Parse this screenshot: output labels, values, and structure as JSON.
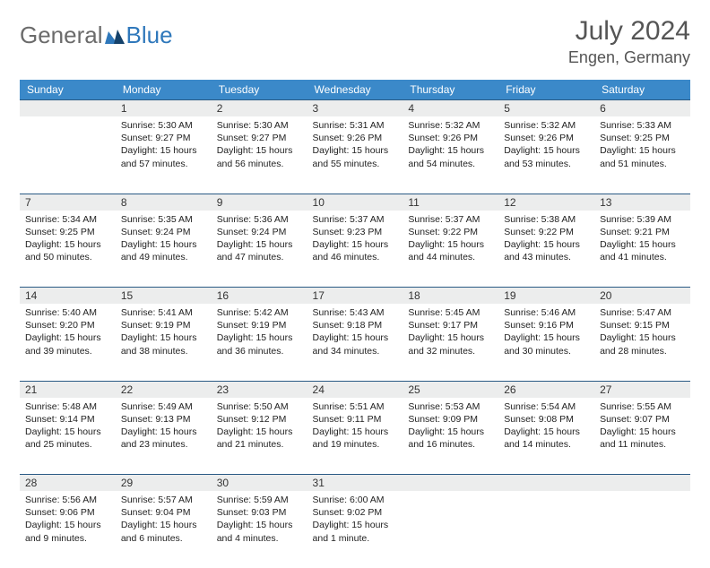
{
  "brand": {
    "part1": "General",
    "part2": "Blue"
  },
  "title": "July 2024",
  "location": "Engen, Germany",
  "header_bg": "#3b89c9",
  "rule_color": "#2a5a84",
  "weekdays": [
    "Sunday",
    "Monday",
    "Tuesday",
    "Wednesday",
    "Thursday",
    "Friday",
    "Saturday"
  ],
  "weeks": [
    {
      "nums": [
        "",
        "1",
        "2",
        "3",
        "4",
        "5",
        "6"
      ],
      "cells": [
        {
          "sunrise": "",
          "sunset": "",
          "daylight": ""
        },
        {
          "sunrise": "Sunrise: 5:30 AM",
          "sunset": "Sunset: 9:27 PM",
          "daylight": "Daylight: 15 hours and 57 minutes."
        },
        {
          "sunrise": "Sunrise: 5:30 AM",
          "sunset": "Sunset: 9:27 PM",
          "daylight": "Daylight: 15 hours and 56 minutes."
        },
        {
          "sunrise": "Sunrise: 5:31 AM",
          "sunset": "Sunset: 9:26 PM",
          "daylight": "Daylight: 15 hours and 55 minutes."
        },
        {
          "sunrise": "Sunrise: 5:32 AM",
          "sunset": "Sunset: 9:26 PM",
          "daylight": "Daylight: 15 hours and 54 minutes."
        },
        {
          "sunrise": "Sunrise: 5:32 AM",
          "sunset": "Sunset: 9:26 PM",
          "daylight": "Daylight: 15 hours and 53 minutes."
        },
        {
          "sunrise": "Sunrise: 5:33 AM",
          "sunset": "Sunset: 9:25 PM",
          "daylight": "Daylight: 15 hours and 51 minutes."
        }
      ]
    },
    {
      "nums": [
        "7",
        "8",
        "9",
        "10",
        "11",
        "12",
        "13"
      ],
      "cells": [
        {
          "sunrise": "Sunrise: 5:34 AM",
          "sunset": "Sunset: 9:25 PM",
          "daylight": "Daylight: 15 hours and 50 minutes."
        },
        {
          "sunrise": "Sunrise: 5:35 AM",
          "sunset": "Sunset: 9:24 PM",
          "daylight": "Daylight: 15 hours and 49 minutes."
        },
        {
          "sunrise": "Sunrise: 5:36 AM",
          "sunset": "Sunset: 9:24 PM",
          "daylight": "Daylight: 15 hours and 47 minutes."
        },
        {
          "sunrise": "Sunrise: 5:37 AM",
          "sunset": "Sunset: 9:23 PM",
          "daylight": "Daylight: 15 hours and 46 minutes."
        },
        {
          "sunrise": "Sunrise: 5:37 AM",
          "sunset": "Sunset: 9:22 PM",
          "daylight": "Daylight: 15 hours and 44 minutes."
        },
        {
          "sunrise": "Sunrise: 5:38 AM",
          "sunset": "Sunset: 9:22 PM",
          "daylight": "Daylight: 15 hours and 43 minutes."
        },
        {
          "sunrise": "Sunrise: 5:39 AM",
          "sunset": "Sunset: 9:21 PM",
          "daylight": "Daylight: 15 hours and 41 minutes."
        }
      ]
    },
    {
      "nums": [
        "14",
        "15",
        "16",
        "17",
        "18",
        "19",
        "20"
      ],
      "cells": [
        {
          "sunrise": "Sunrise: 5:40 AM",
          "sunset": "Sunset: 9:20 PM",
          "daylight": "Daylight: 15 hours and 39 minutes."
        },
        {
          "sunrise": "Sunrise: 5:41 AM",
          "sunset": "Sunset: 9:19 PM",
          "daylight": "Daylight: 15 hours and 38 minutes."
        },
        {
          "sunrise": "Sunrise: 5:42 AM",
          "sunset": "Sunset: 9:19 PM",
          "daylight": "Daylight: 15 hours and 36 minutes."
        },
        {
          "sunrise": "Sunrise: 5:43 AM",
          "sunset": "Sunset: 9:18 PM",
          "daylight": "Daylight: 15 hours and 34 minutes."
        },
        {
          "sunrise": "Sunrise: 5:45 AM",
          "sunset": "Sunset: 9:17 PM",
          "daylight": "Daylight: 15 hours and 32 minutes."
        },
        {
          "sunrise": "Sunrise: 5:46 AM",
          "sunset": "Sunset: 9:16 PM",
          "daylight": "Daylight: 15 hours and 30 minutes."
        },
        {
          "sunrise": "Sunrise: 5:47 AM",
          "sunset": "Sunset: 9:15 PM",
          "daylight": "Daylight: 15 hours and 28 minutes."
        }
      ]
    },
    {
      "nums": [
        "21",
        "22",
        "23",
        "24",
        "25",
        "26",
        "27"
      ],
      "cells": [
        {
          "sunrise": "Sunrise: 5:48 AM",
          "sunset": "Sunset: 9:14 PM",
          "daylight": "Daylight: 15 hours and 25 minutes."
        },
        {
          "sunrise": "Sunrise: 5:49 AM",
          "sunset": "Sunset: 9:13 PM",
          "daylight": "Daylight: 15 hours and 23 minutes."
        },
        {
          "sunrise": "Sunrise: 5:50 AM",
          "sunset": "Sunset: 9:12 PM",
          "daylight": "Daylight: 15 hours and 21 minutes."
        },
        {
          "sunrise": "Sunrise: 5:51 AM",
          "sunset": "Sunset: 9:11 PM",
          "daylight": "Daylight: 15 hours and 19 minutes."
        },
        {
          "sunrise": "Sunrise: 5:53 AM",
          "sunset": "Sunset: 9:09 PM",
          "daylight": "Daylight: 15 hours and 16 minutes."
        },
        {
          "sunrise": "Sunrise: 5:54 AM",
          "sunset": "Sunset: 9:08 PM",
          "daylight": "Daylight: 15 hours and 14 minutes."
        },
        {
          "sunrise": "Sunrise: 5:55 AM",
          "sunset": "Sunset: 9:07 PM",
          "daylight": "Daylight: 15 hours and 11 minutes."
        }
      ]
    },
    {
      "nums": [
        "28",
        "29",
        "30",
        "31",
        "",
        "",
        ""
      ],
      "cells": [
        {
          "sunrise": "Sunrise: 5:56 AM",
          "sunset": "Sunset: 9:06 PM",
          "daylight": "Daylight: 15 hours and 9 minutes."
        },
        {
          "sunrise": "Sunrise: 5:57 AM",
          "sunset": "Sunset: 9:04 PM",
          "daylight": "Daylight: 15 hours and 6 minutes."
        },
        {
          "sunrise": "Sunrise: 5:59 AM",
          "sunset": "Sunset: 9:03 PM",
          "daylight": "Daylight: 15 hours and 4 minutes."
        },
        {
          "sunrise": "Sunrise: 6:00 AM",
          "sunset": "Sunset: 9:02 PM",
          "daylight": "Daylight: 15 hours and 1 minute."
        },
        {
          "sunrise": "",
          "sunset": "",
          "daylight": ""
        },
        {
          "sunrise": "",
          "sunset": "",
          "daylight": ""
        },
        {
          "sunrise": "",
          "sunset": "",
          "daylight": ""
        }
      ]
    }
  ]
}
